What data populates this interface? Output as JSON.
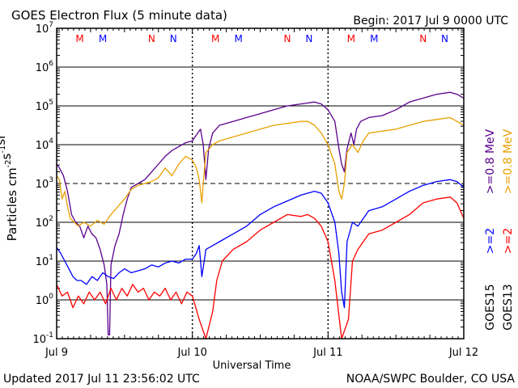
{
  "chart_data": {
    "type": "line",
    "title": "GOES Electron Flux (5 minute data)",
    "begin_label": "Begin: 2017 Jul 9 0000 UTC",
    "xlabel": "Universal Time",
    "x_ticks": [
      "Jul 9",
      "Jul 10",
      "Jul 11",
      "Jul 12"
    ],
    "x_range_days": [
      0,
      3
    ],
    "yscale": "log",
    "ylim_exponents": [
      -1,
      7
    ],
    "y_ticks": [
      "10^-1",
      "10^0",
      "10^1",
      "10^2",
      "10^3",
      "10^4",
      "10^5",
      "10^6",
      "10^7"
    ],
    "ylabel": "Particles cm^-2 s^-1 sr^-1",
    "grid": true,
    "dashed_gridline": "10^3",
    "legend": {
      "placement": "right",
      "entries": [
        {
          "label": ">=0.8 MeV",
          "color": "#e8a000"
        },
        {
          "label": ">=0.8 MeV",
          "color": "#5a008c"
        },
        {
          "label": ">=2",
          "color": "#ff0000"
        },
        {
          "label": ">=2",
          "color": "#0000ff"
        },
        {
          "label": "GOES13",
          "color": "#000000"
        },
        {
          "label": "GOES15",
          "color": "#000000"
        }
      ]
    },
    "markers": [
      {
        "text": "M",
        "day": 0.17,
        "color": "#ff0000"
      },
      {
        "text": "M",
        "day": 0.34,
        "color": "#0000ff"
      },
      {
        "text": "N",
        "day": 0.7,
        "color": "#ff0000"
      },
      {
        "text": "N",
        "day": 0.86,
        "color": "#0000ff"
      },
      {
        "text": "M",
        "day": 1.17,
        "color": "#ff0000"
      },
      {
        "text": "M",
        "day": 1.34,
        "color": "#0000ff"
      },
      {
        "text": "N",
        "day": 1.7,
        "color": "#ff0000"
      },
      {
        "text": "N",
        "day": 1.86,
        "color": "#0000ff"
      },
      {
        "text": "M",
        "day": 2.17,
        "color": "#ff0000"
      },
      {
        "text": "M",
        "day": 2.34,
        "color": "#0000ff"
      },
      {
        "text": "N",
        "day": 2.7,
        "color": "#ff0000"
      },
      {
        "text": "N",
        "day": 2.86,
        "color": "#0000ff"
      }
    ],
    "series": [
      {
        "name": "GOES15 >=0.8 MeV",
        "color": "#5a008c",
        "points": [
          [
            0,
            3.5
          ],
          [
            0.02,
            3.4
          ],
          [
            0.05,
            3.2
          ],
          [
            0.08,
            2.8
          ],
          [
            0.11,
            2.2
          ],
          [
            0.14,
            2.0
          ],
          [
            0.17,
            1.9
          ],
          [
            0.2,
            1.6
          ],
          [
            0.23,
            1.9
          ],
          [
            0.26,
            1.7
          ],
          [
            0.29,
            1.6
          ],
          [
            0.32,
            1.3
          ],
          [
            0.35,
            0.9
          ],
          [
            0.37,
            0.4
          ],
          [
            0.38,
            -0.9
          ],
          [
            0.39,
            -0.9
          ],
          [
            0.4,
            0.9
          ],
          [
            0.43,
            1.4
          ],
          [
            0.46,
            1.7
          ],
          [
            0.49,
            2.2
          ],
          [
            0.52,
            2.6
          ],
          [
            0.55,
            2.9
          ],
          [
            0.6,
            3.0
          ],
          [
            0.65,
            3.1
          ],
          [
            0.7,
            3.3
          ],
          [
            0.75,
            3.5
          ],
          [
            0.8,
            3.7
          ],
          [
            0.85,
            3.85
          ],
          [
            0.9,
            3.95
          ],
          [
            0.95,
            4.05
          ],
          [
            1.0,
            4.1
          ],
          [
            1.03,
            4.25
          ],
          [
            1.06,
            4.4
          ],
          [
            1.08,
            4.0
          ],
          [
            1.1,
            3.1
          ],
          [
            1.12,
            3.9
          ],
          [
            1.15,
            4.3
          ],
          [
            1.2,
            4.5
          ],
          [
            1.3,
            4.6
          ],
          [
            1.4,
            4.7
          ],
          [
            1.5,
            4.8
          ],
          [
            1.6,
            4.9
          ],
          [
            1.7,
            5.0
          ],
          [
            1.8,
            5.05
          ],
          [
            1.9,
            5.1
          ],
          [
            1.95,
            5.05
          ],
          [
            2.0,
            4.9
          ],
          [
            2.05,
            4.6
          ],
          [
            2.08,
            3.9
          ],
          [
            2.1,
            3.5
          ],
          [
            2.12,
            3.3
          ],
          [
            2.14,
            3.9
          ],
          [
            2.17,
            4.3
          ],
          [
            2.19,
            4.0
          ],
          [
            2.21,
            4.4
          ],
          [
            2.24,
            4.6
          ],
          [
            2.3,
            4.7
          ],
          [
            2.4,
            4.75
          ],
          [
            2.5,
            4.9
          ],
          [
            2.6,
            5.1
          ],
          [
            2.7,
            5.2
          ],
          [
            2.8,
            5.3
          ],
          [
            2.9,
            5.35
          ],
          [
            2.95,
            5.3
          ],
          [
            3.0,
            5.2
          ]
        ]
      },
      {
        "name": "GOES13 >=0.8 MeV",
        "color": "#e8a000",
        "points": [
          [
            0,
            3.2
          ],
          [
            0.02,
            3.1
          ],
          [
            0.04,
            2.6
          ],
          [
            0.06,
            2.8
          ],
          [
            0.08,
            2.4
          ],
          [
            0.1,
            2.1
          ],
          [
            0.13,
            2.0
          ],
          [
            0.16,
            1.9
          ],
          [
            0.2,
            2.0
          ],
          [
            0.25,
            1.9
          ],
          [
            0.3,
            2.05
          ],
          [
            0.35,
            1.95
          ],
          [
            0.4,
            2.2
          ],
          [
            0.45,
            2.4
          ],
          [
            0.5,
            2.6
          ],
          [
            0.55,
            2.85
          ],
          [
            0.6,
            2.95
          ],
          [
            0.65,
            3.0
          ],
          [
            0.7,
            3.05
          ],
          [
            0.75,
            3.15
          ],
          [
            0.8,
            3.4
          ],
          [
            0.85,
            3.2
          ],
          [
            0.9,
            3.5
          ],
          [
            0.95,
            3.7
          ],
          [
            1.0,
            3.6
          ],
          [
            1.03,
            3.4
          ],
          [
            1.05,
            3.1
          ],
          [
            1.07,
            2.5
          ],
          [
            1.08,
            3.0
          ],
          [
            1.1,
            3.8
          ],
          [
            1.15,
            4.0
          ],
          [
            1.2,
            4.1
          ],
          [
            1.3,
            4.2
          ],
          [
            1.4,
            4.3
          ],
          [
            1.5,
            4.4
          ],
          [
            1.6,
            4.5
          ],
          [
            1.7,
            4.55
          ],
          [
            1.8,
            4.6
          ],
          [
            1.85,
            4.6
          ],
          [
            1.9,
            4.5
          ],
          [
            1.95,
            4.3
          ],
          [
            2.0,
            4.0
          ],
          [
            2.05,
            3.5
          ],
          [
            2.08,
            2.8
          ],
          [
            2.1,
            2.6
          ],
          [
            2.12,
            3.0
          ],
          [
            2.14,
            3.8
          ],
          [
            2.18,
            4.0
          ],
          [
            2.22,
            3.8
          ],
          [
            2.26,
            4.1
          ],
          [
            2.3,
            4.3
          ],
          [
            2.4,
            4.35
          ],
          [
            2.5,
            4.4
          ],
          [
            2.6,
            4.5
          ],
          [
            2.7,
            4.6
          ],
          [
            2.8,
            4.65
          ],
          [
            2.9,
            4.7
          ],
          [
            2.95,
            4.6
          ],
          [
            3.0,
            4.5
          ]
        ]
      },
      {
        "name": "GOES15 >=2",
        "color": "#0000ff",
        "points": [
          [
            0,
            1.35
          ],
          [
            0.03,
            1.2
          ],
          [
            0.06,
            1.0
          ],
          [
            0.09,
            0.8
          ],
          [
            0.12,
            0.6
          ],
          [
            0.15,
            0.5
          ],
          [
            0.18,
            0.5
          ],
          [
            0.22,
            0.4
          ],
          [
            0.26,
            0.6
          ],
          [
            0.3,
            0.5
          ],
          [
            0.34,
            0.7
          ],
          [
            0.38,
            0.6
          ],
          [
            0.42,
            0.55
          ],
          [
            0.46,
            0.7
          ],
          [
            0.5,
            0.8
          ],
          [
            0.55,
            0.7
          ],
          [
            0.6,
            0.75
          ],
          [
            0.65,
            0.8
          ],
          [
            0.7,
            0.9
          ],
          [
            0.75,
            0.85
          ],
          [
            0.8,
            0.95
          ],
          [
            0.85,
            1.0
          ],
          [
            0.9,
            0.95
          ],
          [
            0.95,
            1.05
          ],
          [
            1.0,
            1.05
          ],
          [
            1.03,
            1.2
          ],
          [
            1.05,
            1.4
          ],
          [
            1.07,
            0.6
          ],
          [
            1.1,
            1.3
          ],
          [
            1.15,
            1.4
          ],
          [
            1.2,
            1.5
          ],
          [
            1.3,
            1.7
          ],
          [
            1.4,
            1.9
          ],
          [
            1.5,
            2.2
          ],
          [
            1.6,
            2.4
          ],
          [
            1.7,
            2.55
          ],
          [
            1.8,
            2.7
          ],
          [
            1.9,
            2.8
          ],
          [
            1.95,
            2.75
          ],
          [
            2.0,
            2.5
          ],
          [
            2.05,
            2.0
          ],
          [
            2.08,
            1.2
          ],
          [
            2.1,
            0.2
          ],
          [
            2.12,
            -0.2
          ],
          [
            2.14,
            1.5
          ],
          [
            2.18,
            2.0
          ],
          [
            2.22,
            1.9
          ],
          [
            2.26,
            2.1
          ],
          [
            2.3,
            2.3
          ],
          [
            2.4,
            2.4
          ],
          [
            2.5,
            2.6
          ],
          [
            2.6,
            2.8
          ],
          [
            2.7,
            2.95
          ],
          [
            2.8,
            3.05
          ],
          [
            2.9,
            3.1
          ],
          [
            2.95,
            3.05
          ],
          [
            3.0,
            2.9
          ]
        ]
      },
      {
        "name": "GOES13 >=2",
        "color": "#ff0000",
        "points": [
          [
            0,
            0.4
          ],
          [
            0.04,
            0.1
          ],
          [
            0.08,
            0.2
          ],
          [
            0.12,
            -0.2
          ],
          [
            0.16,
            0.1
          ],
          [
            0.2,
            -0.1
          ],
          [
            0.24,
            0.2
          ],
          [
            0.28,
            0.0
          ],
          [
            0.32,
            0.2
          ],
          [
            0.36,
            -0.1
          ],
          [
            0.4,
            0.3
          ],
          [
            0.44,
            0.0
          ],
          [
            0.48,
            0.3
          ],
          [
            0.52,
            0.1
          ],
          [
            0.56,
            0.4
          ],
          [
            0.6,
            0.2
          ],
          [
            0.64,
            0.3
          ],
          [
            0.68,
            0.0
          ],
          [
            0.72,
            0.2
          ],
          [
            0.76,
            0.1
          ],
          [
            0.8,
            0.3
          ],
          [
            0.84,
            0.0
          ],
          [
            0.88,
            0.2
          ],
          [
            0.92,
            -0.1
          ],
          [
            0.96,
            0.2
          ],
          [
            1.0,
            0.1
          ],
          [
            1.05,
            -0.5
          ],
          [
            1.1,
            -1
          ],
          [
            1.15,
            -0.3
          ],
          [
            1.18,
            0.5
          ],
          [
            1.22,
            1.0
          ],
          [
            1.3,
            1.3
          ],
          [
            1.4,
            1.5
          ],
          [
            1.5,
            1.8
          ],
          [
            1.6,
            2.0
          ],
          [
            1.7,
            2.2
          ],
          [
            1.8,
            2.15
          ],
          [
            1.85,
            2.2
          ],
          [
            1.9,
            2.1
          ],
          [
            1.95,
            1.9
          ],
          [
            2.0,
            1.5
          ],
          [
            2.05,
            0.5
          ],
          [
            2.1,
            -1
          ],
          [
            2.15,
            -0.5
          ],
          [
            2.18,
            1.0
          ],
          [
            2.22,
            1.3
          ],
          [
            2.26,
            1.5
          ],
          [
            2.3,
            1.7
          ],
          [
            2.4,
            1.8
          ],
          [
            2.5,
            2.0
          ],
          [
            2.6,
            2.2
          ],
          [
            2.7,
            2.5
          ],
          [
            2.8,
            2.6
          ],
          [
            2.9,
            2.65
          ],
          [
            2.95,
            2.5
          ],
          [
            3.0,
            2.1
          ]
        ]
      }
    ]
  },
  "footer": {
    "updated": "Updated 2017 Jul 11 23:56:02 UTC",
    "source": "NOAA/SWPC Boulder, CO USA"
  }
}
